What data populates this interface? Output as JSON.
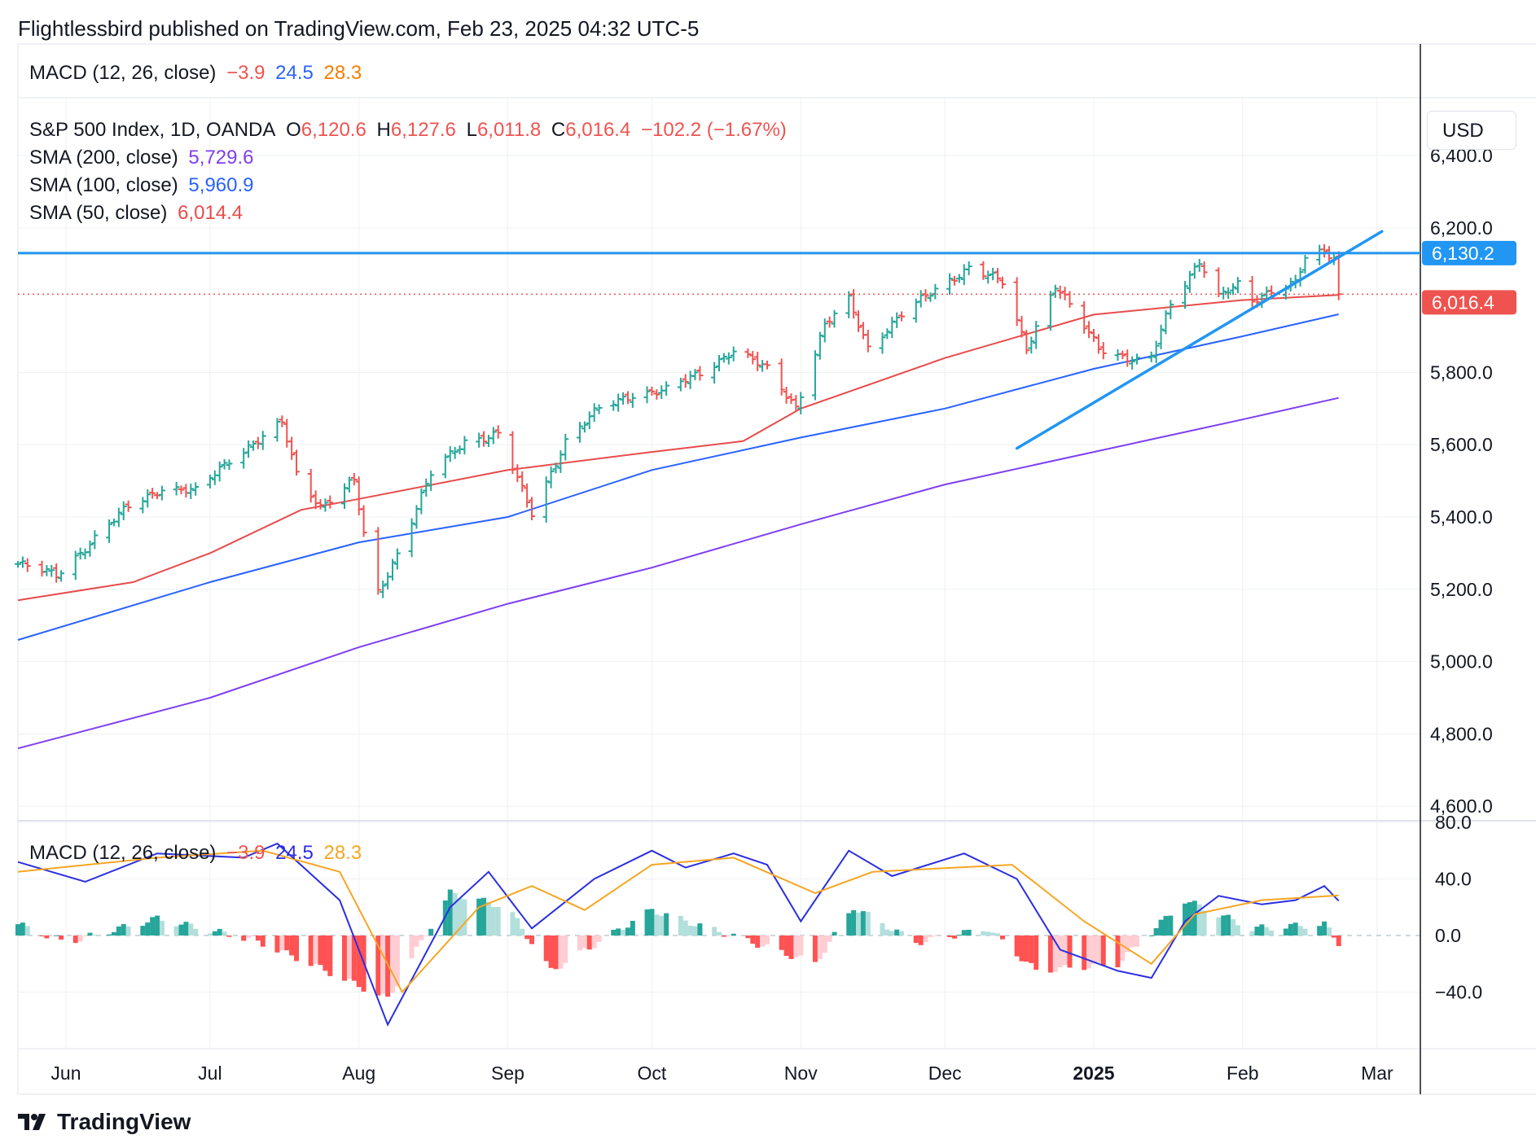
{
  "header": {
    "publisher_line": "Flightlessbird published on TradingView.com, Feb 23, 2025 04:32 UTC-5"
  },
  "top_legend": {
    "name": "MACD (12, 26, close)",
    "v1": "−3.9",
    "v2": "24.5",
    "v3": "28.3"
  },
  "main_legend": {
    "symbol": "S&P 500 Index, 1D, OANDA",
    "o_label": "O",
    "o": "6,120.6",
    "h_label": "H",
    "h": "6,127.6",
    "l_label": "L",
    "l": "6,011.8",
    "c_label": "C",
    "c": "6,016.4",
    "change": "−102.2 (−1.67%)",
    "sma200_label": "SMA (200, close)",
    "sma200": "5,729.6",
    "sma100_label": "SMA (100, close)",
    "sma100": "5,960.9",
    "sma50_label": "SMA (50, close)",
    "sma50": "6,014.4"
  },
  "macd_legend": {
    "name": "MACD (12, 26, close)",
    "v1": "−3.9",
    "v2": "24.5",
    "v3": "28.3"
  },
  "currency_button": "USD",
  "footer": {
    "brand": "TradingView"
  },
  "colors": {
    "up": "#26a69a",
    "down": "#ef5350",
    "sma200": "#7e3ff2",
    "sma100": "#2962ff",
    "sma50": "#e84b4b",
    "trend": "#2196f3",
    "macd": "#2b2fe0",
    "signal": "#f5a623"
  },
  "chart_data": [
    {
      "type": "candlestick",
      "title": "S&P 500 Index, 1D, OANDA",
      "ylim": [
        4560,
        6560
      ],
      "y_ticks": [
        "6,400.0",
        "6,200.0",
        "5,800.0",
        "5,600.0",
        "5,400.0",
        "5,200.0",
        "5,000.0",
        "4,800.0",
        "4,600.0"
      ],
      "y_tick_values": [
        6400,
        6200,
        5800,
        5600,
        5400,
        5200,
        5000,
        4800,
        4600
      ],
      "x_labels": [
        "Jun",
        "Jul",
        "Aug",
        "Sep",
        "Oct",
        "Nov",
        "Dec",
        "2025",
        "Feb",
        "Mar"
      ],
      "x_label_dates": [
        "2024-06-01",
        "2024-07-01",
        "2024-08-01",
        "2024-09-01",
        "2024-10-01",
        "2024-11-01",
        "2024-12-01",
        "2025-01-01",
        "2025-02-01",
        "2025-03-01"
      ],
      "date_range": [
        "2024-05-22",
        "2025-03-10"
      ],
      "price_labels": {
        "resistance": "6,130.2",
        "last": "6,016.4"
      },
      "resistance_level": 6130.2,
      "last_close": 6016.4,
      "trendline": {
        "from": {
          "date": "2024-12-16",
          "value": 5590
        },
        "to": {
          "date": "2025-03-02",
          "value": 6190
        }
      },
      "close_path": [
        [
          "2024-05-22",
          5270
        ],
        [
          "2024-05-30",
          5240
        ],
        [
          "2024-06-07",
          5340
        ],
        [
          "2024-06-14",
          5430
        ],
        [
          "2024-06-21",
          5480
        ],
        [
          "2024-06-28",
          5470
        ],
        [
          "2024-07-05",
          5560
        ],
        [
          "2024-07-12",
          5620
        ],
        [
          "2024-07-16",
          5660
        ],
        [
          "2024-07-19",
          5520
        ],
        [
          "2024-07-24",
          5430
        ],
        [
          "2024-07-31",
          5500
        ],
        [
          "2024-08-02",
          5350
        ],
        [
          "2024-08-05",
          5190
        ],
        [
          "2024-08-09",
          5300
        ],
        [
          "2024-08-16",
          5520
        ],
        [
          "2024-08-23",
          5610
        ],
        [
          "2024-08-30",
          5630
        ],
        [
          "2024-09-06",
          5410
        ],
        [
          "2024-09-13",
          5610
        ],
        [
          "2024-09-20",
          5700
        ],
        [
          "2024-09-27",
          5740
        ],
        [
          "2024-10-04",
          5750
        ],
        [
          "2024-10-11",
          5800
        ],
        [
          "2024-10-18",
          5860
        ],
        [
          "2024-10-25",
          5810
        ],
        [
          "2024-10-31",
          5705
        ],
        [
          "2024-11-06",
          5930
        ],
        [
          "2024-11-11",
          6000
        ],
        [
          "2024-11-15",
          5870
        ],
        [
          "2024-11-22",
          5960
        ],
        [
          "2024-11-29",
          6030
        ],
        [
          "2024-12-06",
          6090
        ],
        [
          "2024-12-13",
          6050
        ],
        [
          "2024-12-18",
          5870
        ],
        [
          "2024-12-24",
          6040
        ],
        [
          "2025-01-02",
          5870
        ],
        [
          "2025-01-10",
          5830
        ],
        [
          "2025-01-13",
          5840
        ],
        [
          "2025-01-17",
          5990
        ],
        [
          "2025-01-23",
          6110
        ],
        [
          "2025-01-27",
          6010
        ],
        [
          "2025-01-31",
          6040
        ],
        [
          "2025-02-03",
          5995
        ],
        [
          "2025-02-07",
          6030
        ],
        [
          "2025-02-12",
          6050
        ],
        [
          "2025-02-14",
          6115
        ],
        [
          "2025-02-18",
          6130
        ],
        [
          "2025-02-20",
          6117
        ],
        [
          "2025-02-21",
          6016.4
        ]
      ],
      "series": [
        {
          "name": "SMA (200, close)",
          "points": [
            [
              "2024-05-22",
              4760
            ],
            [
              "2024-07-01",
              4900
            ],
            [
              "2024-08-01",
              5040
            ],
            [
              "2024-09-01",
              5160
            ],
            [
              "2024-10-01",
              5260
            ],
            [
              "2024-11-01",
              5380
            ],
            [
              "2024-12-01",
              5490
            ],
            [
              "2025-01-01",
              5580
            ],
            [
              "2025-02-01",
              5670
            ],
            [
              "2025-02-21",
              5729.6
            ]
          ]
        },
        {
          "name": "SMA (100, close)",
          "points": [
            [
              "2024-05-22",
              5060
            ],
            [
              "2024-07-01",
              5220
            ],
            [
              "2024-08-01",
              5330
            ],
            [
              "2024-09-01",
              5400
            ],
            [
              "2024-10-01",
              5530
            ],
            [
              "2024-11-01",
              5620
            ],
            [
              "2024-12-01",
              5700
            ],
            [
              "2025-01-01",
              5810
            ],
            [
              "2025-02-01",
              5900
            ],
            [
              "2025-02-21",
              5960.9
            ]
          ]
        },
        {
          "name": "SMA (50, close)",
          "points": [
            [
              "2024-05-22",
              5170
            ],
            [
              "2024-06-15",
              5220
            ],
            [
              "2024-07-01",
              5300
            ],
            [
              "2024-07-20",
              5420
            ],
            [
              "2024-08-01",
              5450
            ],
            [
              "2024-09-01",
              5530
            ],
            [
              "2024-10-01",
              5580
            ],
            [
              "2024-10-20",
              5610
            ],
            [
              "2024-11-01",
              5700
            ],
            [
              "2024-12-01",
              5840
            ],
            [
              "2025-01-01",
              5960
            ],
            [
              "2025-02-01",
              6000
            ],
            [
              "2025-02-21",
              6014.4
            ]
          ]
        }
      ]
    },
    {
      "type": "line",
      "title": "MACD (12, 26, close)",
      "ylim": [
        -80,
        80
      ],
      "y_ticks": [
        "80.0",
        "40.0",
        "0.0",
        "−40.0"
      ],
      "y_tick_values": [
        80,
        40,
        0,
        -40
      ],
      "series": [
        {
          "name": "MACD",
          "points": [
            [
              "2024-05-22",
              52
            ],
            [
              "2024-06-05",
              38
            ],
            [
              "2024-06-20",
              58
            ],
            [
              "2024-07-08",
              55
            ],
            [
              "2024-07-15",
              65
            ],
            [
              "2024-07-28",
              25
            ],
            [
              "2024-08-07",
              -63
            ],
            [
              "2024-08-20",
              20
            ],
            [
              "2024-08-28",
              45
            ],
            [
              "2024-09-06",
              5
            ],
            [
              "2024-09-19",
              40
            ],
            [
              "2024-10-01",
              60
            ],
            [
              "2024-10-08",
              48
            ],
            [
              "2024-10-18",
              58
            ],
            [
              "2024-10-25",
              50
            ],
            [
              "2024-11-01",
              10
            ],
            [
              "2024-11-11",
              60
            ],
            [
              "2024-11-20",
              42
            ],
            [
              "2024-12-05",
              58
            ],
            [
              "2024-12-16",
              40
            ],
            [
              "2024-12-25",
              -10
            ],
            [
              "2025-01-06",
              -25
            ],
            [
              "2025-01-13",
              -30
            ],
            [
              "2025-01-20",
              10
            ],
            [
              "2025-01-27",
              28
            ],
            [
              "2025-02-05",
              22
            ],
            [
              "2025-02-12",
              25
            ],
            [
              "2025-02-18",
              35
            ],
            [
              "2025-02-21",
              24.5
            ]
          ]
        },
        {
          "name": "Signal",
          "points": [
            [
              "2024-05-22",
              45
            ],
            [
              "2024-06-20",
              55
            ],
            [
              "2024-07-12",
              60
            ],
            [
              "2024-07-28",
              45
            ],
            [
              "2024-08-10",
              -40
            ],
            [
              "2024-08-26",
              20
            ],
            [
              "2024-09-06",
              35
            ],
            [
              "2024-09-17",
              18
            ],
            [
              "2024-10-01",
              50
            ],
            [
              "2024-10-18",
              55
            ],
            [
              "2024-11-04",
              30
            ],
            [
              "2024-11-16",
              45
            ],
            [
              "2024-12-15",
              50
            ],
            [
              "2024-12-30",
              10
            ],
            [
              "2025-01-13",
              -20
            ],
            [
              "2025-01-22",
              15
            ],
            [
              "2025-02-05",
              25
            ],
            [
              "2025-02-21",
              28.3
            ]
          ]
        }
      ],
      "histogram_envelope": [
        [
          "2024-05-22",
          8
        ],
        [
          "2024-06-01",
          -5
        ],
        [
          "2024-06-20",
          12
        ],
        [
          "2024-07-10",
          -3
        ],
        [
          "2024-07-22",
          -20
        ],
        [
          "2024-08-07",
          -45
        ],
        [
          "2024-08-20",
          30
        ],
        [
          "2024-09-01",
          20
        ],
        [
          "2024-09-10",
          -25
        ],
        [
          "2024-10-01",
          18
        ],
        [
          "2024-10-22",
          -5
        ],
        [
          "2024-11-04",
          -20
        ],
        [
          "2024-11-12",
          20
        ],
        [
          "2024-11-25",
          -5
        ],
        [
          "2024-12-10",
          5
        ],
        [
          "2024-12-20",
          -25
        ],
        [
          "2025-01-06",
          -20
        ],
        [
          "2025-01-20",
          25
        ],
        [
          "2025-02-03",
          5
        ],
        [
          "2025-02-18",
          8
        ],
        [
          "2025-02-21",
          -5
        ]
      ]
    }
  ]
}
